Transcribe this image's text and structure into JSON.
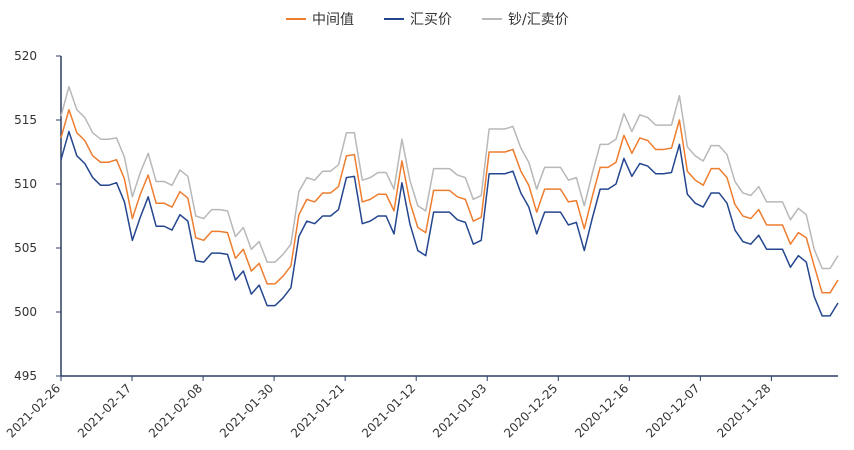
{
  "chart_data": {
    "type": "line",
    "title": "",
    "xlabel": "",
    "ylabel": "",
    "ylim": [
      495,
      520
    ],
    "yticks": [
      495,
      500,
      505,
      510,
      515,
      520
    ],
    "grid": false,
    "legend_position": "top-center",
    "x_tick_labels": [
      "2021-02-26",
      "2021-02-17",
      "2021-02-08",
      "2021-01-30",
      "2021-01-21",
      "2021-01-12",
      "2021-01-03",
      "2020-12-25",
      "2020-12-16",
      "2020-12-07",
      "2020-11-28"
    ],
    "series": [
      {
        "name": "中间值",
        "color": "#ee7d2f",
        "values": [
          513.6,
          515.8,
          514.0,
          513.4,
          512.2,
          511.7,
          511.7,
          511.9,
          510.4,
          507.3,
          509.2,
          510.7,
          508.5,
          508.5,
          508.2,
          509.4,
          508.9,
          505.8,
          505.6,
          506.3,
          506.3,
          506.2,
          504.2,
          504.9,
          503.2,
          503.8,
          502.2,
          502.2,
          502.8,
          503.6,
          507.6,
          508.8,
          508.6,
          509.3,
          509.3,
          509.8,
          512.2,
          512.3,
          508.6,
          508.8,
          509.2,
          509.2,
          507.9,
          511.8,
          508.6,
          506.6,
          506.2,
          509.5,
          509.5,
          509.5,
          509.0,
          508.8,
          507.1,
          507.4,
          512.5,
          512.5,
          512.5,
          512.7,
          511.0,
          509.9,
          507.8,
          509.6,
          509.6,
          509.6,
          508.6,
          508.7,
          506.5,
          509.0,
          511.3,
          511.3,
          511.7,
          513.8,
          512.4,
          513.6,
          513.4,
          512.7,
          512.7,
          512.8,
          515.0,
          511.0,
          510.3,
          509.9,
          511.2,
          511.2,
          510.5,
          508.4,
          507.5,
          507.3,
          508.0,
          506.8,
          506.8,
          506.8,
          505.3,
          506.2,
          505.8,
          503.6,
          501.5,
          501.5,
          502.5
        ]
      },
      {
        "name": "汇买价",
        "color": "#24468f",
        "values": [
          511.9,
          514.1,
          512.2,
          511.6,
          510.5,
          509.9,
          509.9,
          510.1,
          508.6,
          505.6,
          507.4,
          509.0,
          506.7,
          506.7,
          506.4,
          507.6,
          507.1,
          504.0,
          503.9,
          504.6,
          504.6,
          504.5,
          502.5,
          503.2,
          501.4,
          502.1,
          500.5,
          500.5,
          501.1,
          501.9,
          505.9,
          507.1,
          506.9,
          507.5,
          507.5,
          508.0,
          510.5,
          510.6,
          506.9,
          507.1,
          507.5,
          507.5,
          506.1,
          510.1,
          506.9,
          504.8,
          504.4,
          507.8,
          507.8,
          507.8,
          507.2,
          507.0,
          505.3,
          505.6,
          510.8,
          510.8,
          510.8,
          511.0,
          509.3,
          508.2,
          506.1,
          507.8,
          507.8,
          507.8,
          506.8,
          507.0,
          504.8,
          507.3,
          509.6,
          509.6,
          510.0,
          512.0,
          510.6,
          511.6,
          511.4,
          510.8,
          510.8,
          510.9,
          513.1,
          509.2,
          508.5,
          508.2,
          509.3,
          509.3,
          508.5,
          506.4,
          505.5,
          505.3,
          506.0,
          504.9,
          504.9,
          504.9,
          503.5,
          504.4,
          503.9,
          501.2,
          499.7,
          499.7,
          500.7
        ]
      },
      {
        "name": "钞/汇卖价",
        "color": "#b8b8b8",
        "values": [
          515.3,
          517.6,
          515.8,
          515.2,
          514.0,
          513.5,
          513.5,
          513.6,
          512.1,
          509.0,
          510.9,
          512.4,
          510.2,
          510.2,
          509.9,
          511.1,
          510.6,
          507.5,
          507.3,
          508.0,
          508.0,
          507.9,
          505.9,
          506.6,
          504.9,
          505.5,
          503.9,
          503.9,
          504.5,
          505.3,
          509.4,
          510.5,
          510.3,
          511.0,
          511.0,
          511.5,
          514.0,
          514.0,
          510.3,
          510.5,
          510.9,
          510.9,
          509.6,
          513.5,
          510.3,
          508.3,
          507.9,
          511.2,
          511.2,
          511.2,
          510.7,
          510.5,
          508.8,
          509.1,
          514.3,
          514.3,
          514.3,
          514.5,
          512.8,
          511.7,
          509.6,
          511.3,
          511.3,
          511.3,
          510.3,
          510.5,
          508.3,
          510.8,
          513.1,
          513.1,
          513.5,
          515.5,
          514.1,
          515.4,
          515.2,
          514.6,
          514.6,
          514.6,
          516.9,
          512.9,
          512.2,
          511.8,
          513.0,
          513.0,
          512.3,
          510.2,
          509.3,
          509.1,
          509.8,
          508.6,
          508.6,
          508.6,
          507.2,
          508.1,
          507.6,
          504.9,
          503.4,
          503.4,
          504.4
        ]
      }
    ]
  }
}
